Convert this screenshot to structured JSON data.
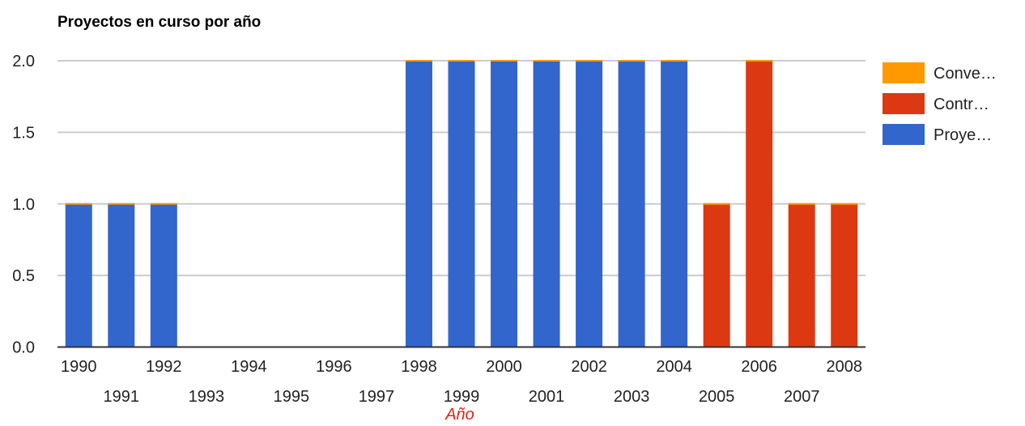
{
  "chart_data": {
    "type": "bar",
    "stacked": true,
    "title": "Proyectos en curso por año",
    "xlabel": "Año",
    "ylabel": "",
    "ylim": [
      0,
      2
    ],
    "yticks": [
      "0.0",
      "0.5",
      "1.0",
      "1.5",
      "2.0"
    ],
    "categories": [
      "1990",
      "1991",
      "1992",
      "1993",
      "1994",
      "1995",
      "1996",
      "1997",
      "1998",
      "1999",
      "2000",
      "2001",
      "2002",
      "2003",
      "2004",
      "2005",
      "2006",
      "2007",
      "2008"
    ],
    "series": [
      {
        "name": "Proye…",
        "color": "#3366cc",
        "values": [
          1,
          1,
          1,
          0,
          0,
          0,
          0,
          0,
          2,
          2,
          2,
          2,
          2,
          2,
          2,
          0,
          0,
          0,
          0
        ]
      },
      {
        "name": "Contr…",
        "color": "#dc3912",
        "values": [
          0,
          0,
          0,
          0,
          0,
          0,
          0,
          0,
          0,
          0,
          0,
          0,
          0,
          0,
          0,
          1,
          2,
          1,
          1
        ]
      },
      {
        "name": "Conve…",
        "color": "#ff9900",
        "values": [
          0,
          0,
          0,
          0,
          0,
          0,
          0,
          0,
          0,
          0,
          0,
          0,
          0,
          0,
          0,
          0,
          0,
          0,
          0
        ]
      }
    ],
    "legend_order": [
      "Conve…",
      "Contr…",
      "Proye…"
    ],
    "legend_position": "right",
    "grid": true
  }
}
